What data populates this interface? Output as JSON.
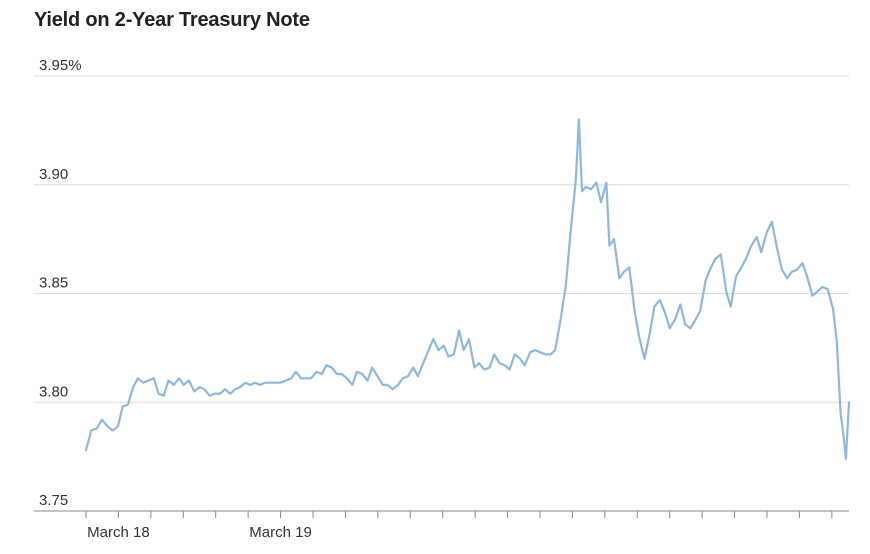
{
  "chart_data": {
    "type": "line",
    "title": "Yield on 2-Year Treasury Note",
    "xlabel": "",
    "ylabel": "",
    "ylim": [
      3.75,
      3.95
    ],
    "y_ticks": [
      {
        "value": 3.95,
        "label": "3.95%"
      },
      {
        "value": 3.9,
        "label": "3.90"
      },
      {
        "value": 3.85,
        "label": "3.85"
      },
      {
        "value": 3.8,
        "label": "3.80"
      },
      {
        "value": 3.75,
        "label": "3.75"
      }
    ],
    "x_range": [
      0,
      100
    ],
    "x_tick_marks": [
      0,
      4.25,
      8.5,
      12.75,
      17,
      21.25,
      25.5,
      29.75,
      34,
      38.25,
      42.5,
      46.75,
      51,
      55.25,
      59.5,
      63.75,
      68,
      72.25,
      76.5,
      80.75,
      85,
      89.25,
      93.5,
      97.75
    ],
    "x_labels": [
      {
        "x": 4.25,
        "label": "March 18"
      },
      {
        "x": 25.5,
        "label": "March 19"
      }
    ],
    "grid": true,
    "line_color": "#8fb8dc",
    "grid_color": "#dddddd",
    "axis_color": "#888888",
    "series": [
      {
        "values": [
          [
            0,
            3.778
          ],
          [
            0.7,
            3.787
          ],
          [
            1.4,
            3.788
          ],
          [
            2.1,
            3.792
          ],
          [
            2.8,
            3.789
          ],
          [
            3.5,
            3.787
          ],
          [
            4.2,
            3.789
          ],
          [
            4.8,
            3.798
          ],
          [
            5.5,
            3.799
          ],
          [
            6.2,
            3.807
          ],
          [
            6.8,
            3.811
          ],
          [
            7.5,
            3.809
          ],
          [
            8.2,
            3.81
          ],
          [
            8.9,
            3.811
          ],
          [
            9.5,
            3.804
          ],
          [
            10.2,
            3.803
          ],
          [
            10.8,
            3.81
          ],
          [
            11.5,
            3.808
          ],
          [
            12.2,
            3.811
          ],
          [
            12.8,
            3.808
          ],
          [
            13.5,
            3.81
          ],
          [
            14.2,
            3.805
          ],
          [
            14.9,
            3.807
          ],
          [
            15.5,
            3.806
          ],
          [
            16.2,
            3.803
          ],
          [
            16.9,
            3.804
          ],
          [
            17.6,
            3.804
          ],
          [
            18.2,
            3.806
          ],
          [
            18.9,
            3.804
          ],
          [
            19.6,
            3.806
          ],
          [
            20.2,
            3.807
          ],
          [
            20.9,
            3.809
          ],
          [
            21.5,
            3.808
          ],
          [
            22.2,
            3.809
          ],
          [
            22.8,
            3.808
          ],
          [
            23.5,
            3.809
          ],
          [
            24.2,
            3.809
          ],
          [
            24.9,
            3.809
          ],
          [
            25.5,
            3.809
          ],
          [
            26.2,
            3.81
          ],
          [
            26.9,
            3.811
          ],
          [
            27.5,
            3.814
          ],
          [
            28.2,
            3.811
          ],
          [
            28.9,
            3.811
          ],
          [
            29.5,
            3.811
          ],
          [
            30.2,
            3.814
          ],
          [
            30.9,
            3.813
          ],
          [
            31.5,
            3.817
          ],
          [
            32.2,
            3.816
          ],
          [
            32.9,
            3.813
          ],
          [
            33.5,
            3.813
          ],
          [
            34.2,
            3.811
          ],
          [
            34.9,
            3.808
          ],
          [
            35.5,
            3.814
          ],
          [
            36.2,
            3.813
          ],
          [
            36.9,
            3.81
          ],
          [
            37.5,
            3.816
          ],
          [
            38.2,
            3.812
          ],
          [
            38.9,
            3.808
          ],
          [
            39.5,
            3.808
          ],
          [
            40.2,
            3.806
          ],
          [
            40.9,
            3.808
          ],
          [
            41.5,
            3.811
          ],
          [
            42.2,
            3.812
          ],
          [
            42.9,
            3.816
          ],
          [
            43.5,
            3.812
          ],
          [
            44.2,
            3.818
          ],
          [
            44.9,
            3.824
          ],
          [
            45.5,
            3.829
          ],
          [
            46.2,
            3.824
          ],
          [
            46.9,
            3.826
          ],
          [
            47.5,
            3.821
          ],
          [
            48.2,
            3.822
          ],
          [
            48.9,
            3.833
          ],
          [
            49.5,
            3.824
          ],
          [
            50.2,
            3.829
          ],
          [
            50.9,
            3.816
          ],
          [
            51.5,
            3.818
          ],
          [
            52.2,
            3.815
          ],
          [
            52.9,
            3.816
          ],
          [
            53.5,
            3.822
          ],
          [
            54.2,
            3.818
          ],
          [
            54.9,
            3.817
          ],
          [
            55.5,
            3.815
          ],
          [
            56.2,
            3.822
          ],
          [
            56.9,
            3.82
          ],
          [
            57.5,
            3.817
          ],
          [
            58.2,
            3.823
          ],
          [
            58.9,
            3.824
          ],
          [
            59.5,
            3.823
          ],
          [
            60.2,
            3.822
          ],
          [
            60.9,
            3.822
          ],
          [
            61.5,
            3.824
          ],
          [
            62.2,
            3.838
          ],
          [
            62.9,
            3.854
          ],
          [
            63.5,
            3.878
          ],
          [
            64.2,
            3.902
          ],
          [
            64.6,
            3.93
          ],
          [
            65.0,
            3.897
          ],
          [
            65.5,
            3.899
          ],
          [
            66.2,
            3.898
          ],
          [
            66.9,
            3.901
          ],
          [
            67.5,
            3.892
          ],
          [
            68.2,
            3.901
          ],
          [
            68.6,
            3.872
          ],
          [
            69.2,
            3.875
          ],
          [
            69.9,
            3.857
          ],
          [
            70.5,
            3.86
          ],
          [
            71.2,
            3.862
          ],
          [
            71.9,
            3.842
          ],
          [
            72.5,
            3.83
          ],
          [
            73.2,
            3.82
          ],
          [
            73.9,
            3.832
          ],
          [
            74.5,
            3.844
          ],
          [
            75.2,
            3.847
          ],
          [
            75.9,
            3.841
          ],
          [
            76.5,
            3.834
          ],
          [
            77.2,
            3.838
          ],
          [
            77.9,
            3.845
          ],
          [
            78.5,
            3.836
          ],
          [
            79.2,
            3.834
          ],
          [
            79.9,
            3.838
          ],
          [
            80.5,
            3.842
          ],
          [
            81.2,
            3.856
          ],
          [
            81.9,
            3.862
          ],
          [
            82.5,
            3.866
          ],
          [
            83.2,
            3.868
          ],
          [
            83.9,
            3.851
          ],
          [
            84.5,
            3.844
          ],
          [
            85.2,
            3.858
          ],
          [
            85.9,
            3.862
          ],
          [
            86.5,
            3.866
          ],
          [
            87.2,
            3.872
          ],
          [
            87.9,
            3.876
          ],
          [
            88.5,
            3.869
          ],
          [
            89.2,
            3.878
          ],
          [
            89.9,
            3.883
          ],
          [
            90.5,
            3.872
          ],
          [
            91.2,
            3.861
          ],
          [
            91.9,
            3.857
          ],
          [
            92.5,
            3.86
          ],
          [
            93.2,
            3.861
          ],
          [
            93.9,
            3.864
          ],
          [
            94.5,
            3.858
          ],
          [
            95.2,
            3.849
          ],
          [
            95.9,
            3.851
          ],
          [
            96.5,
            3.853
          ],
          [
            97.2,
            3.852
          ],
          [
            97.9,
            3.843
          ],
          [
            98.4,
            3.828
          ],
          [
            98.9,
            3.795
          ],
          [
            99.3,
            3.784
          ],
          [
            99.6,
            3.774
          ],
          [
            100.0,
            3.8
          ]
        ]
      }
    ]
  }
}
